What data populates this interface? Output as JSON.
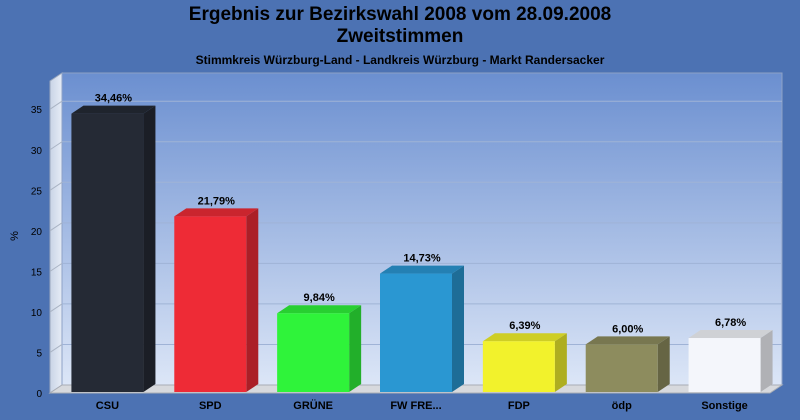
{
  "chart_data": {
    "type": "bar",
    "title_line1": "Ergebnis zur Bezirkswahl 2008 vom 28.09.2008",
    "title_line2": "Zweitstimmen",
    "subtitle": "Stimmkreis Würzburg-Land - Landkreis Würzburg - Markt Randersacker",
    "ylabel": "%",
    "xlabel": "",
    "ylim": [
      0,
      37
    ],
    "yticks": [
      0,
      5,
      10,
      15,
      20,
      25,
      30,
      35
    ],
    "grid": true,
    "categories": [
      "CSU",
      "SPD",
      "GRÜNE",
      "FW FRE...",
      "FDP",
      "ödp",
      "Sonstige"
    ],
    "values": [
      34.46,
      21.79,
      9.84,
      14.73,
      6.39,
      6.0,
      6.78
    ],
    "value_labels": [
      "34,46%",
      "21,79%",
      "9,84%",
      "14,73%",
      "6,39%",
      "6,00%",
      "6,78%"
    ],
    "colors": [
      "#252a35",
      "#ee2b36",
      "#2ff33a",
      "#2a97d2",
      "#f2f22c",
      "#8d8c5e",
      "#f4f6fb"
    ]
  },
  "colors": {
    "background": "#4c72b3",
    "plot_top": "#6b8fd0",
    "plot_bottom": "#dce6f7"
  }
}
